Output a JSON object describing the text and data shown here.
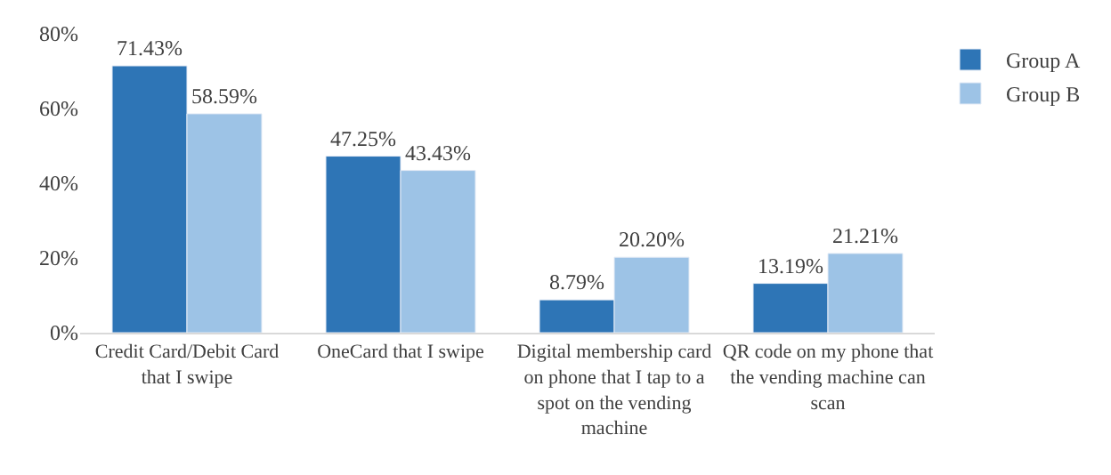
{
  "chart_data": {
    "type": "bar",
    "categories": [
      "Credit Card/Debit Card that I swipe",
      "OneCard that I swipe",
      "Digital membership card on phone that I tap to a spot on the vending machine",
      "QR code on my phone that the vending machine can scan"
    ],
    "series": [
      {
        "name": "Group A",
        "color": "#2e75b6",
        "values": [
          71.43,
          47.25,
          8.79,
          13.19
        ],
        "value_labels": [
          "71.43%",
          "47.25%",
          "8.79%",
          "13.19%"
        ]
      },
      {
        "name": "Group B",
        "color": "#9dc3e6",
        "values": [
          58.59,
          43.43,
          20.2,
          21.21
        ],
        "value_labels": [
          "58.59%",
          "43.43%",
          "20.20%",
          "21.21%"
        ]
      }
    ],
    "ylim": [
      0,
      80
    ],
    "yticks": [
      {
        "value": 0,
        "label": "0%"
      },
      {
        "value": 20,
        "label": "20%"
      },
      {
        "value": 40,
        "label": "40%"
      },
      {
        "value": 60,
        "label": "60%"
      },
      {
        "value": 80,
        "label": "80%"
      }
    ],
    "legend": "top right"
  }
}
